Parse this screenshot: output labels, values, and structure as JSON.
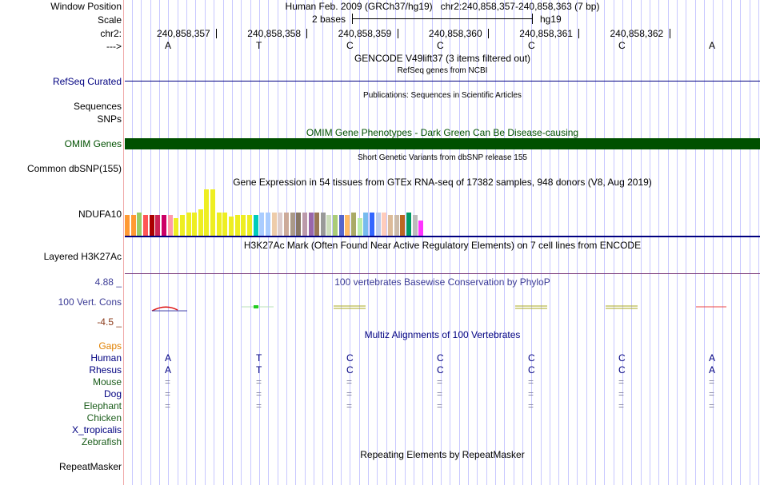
{
  "header": {
    "window_position_label": "Window Position",
    "window_position_value": "Human Feb. 2009 (GRCh37/hg19)   chr2:240,858,357-240,858,363 (7 bp)",
    "scale_label": "Scale",
    "scale_text": "2 bases",
    "scale_assembly": "hg19",
    "chrom_label": "chr2:",
    "strand_label": "--->",
    "coordinates": [
      "240,858,357",
      "240,858,358",
      "240,858,359",
      "240,858,360",
      "240,858,361",
      "240,858,362"
    ],
    "bases": [
      "A",
      "T",
      "C",
      "C",
      "C",
      "C",
      "A"
    ]
  },
  "tracks": {
    "gencode_title": "GENCODE V49lift37 (3 items filtered out)",
    "refseq_subtitle": "RefSeq genes from NCBI",
    "refseq_label": "RefSeq Curated",
    "publications_title": "Publications: Sequences in Scientific Articles",
    "sequences_label": "Sequences",
    "snps_label": "SNPs",
    "omim_title": "OMIM Gene Phenotypes - Dark Green Can Be Disease-causing",
    "omim_label": "OMIM Genes",
    "dbsnp_title": "Short Genetic Variants from dbSNP release 155",
    "dbsnp_label": "Common dbSNP(155)",
    "gtex_title": "Gene Expression in 54 tissues from GTEx RNA-seq of 17382 samples, 948 donors (V8, Aug 2019)",
    "gtex_label": "NDUFA10",
    "h3k27_title": "H3K27Ac Mark (Often Found Near Active Regulatory Elements) on 7 cell lines from ENCODE",
    "h3k27_label": "Layered H3K27Ac",
    "phylop_title": "100 vertebrates Basewise Conservation by PhyloP",
    "phylop_label": "100 Vert. Cons",
    "phylop_max": "4.88 _",
    "phylop_min": "-4.5 _",
    "multiz_title": "Multiz Alignments of 100 Vertebrates",
    "gaps_label": "Gaps",
    "species": [
      {
        "name": "Human",
        "color": "#000080",
        "row": [
          "A",
          "T",
          "C",
          "C",
          "C",
          "C",
          "A"
        ]
      },
      {
        "name": "Rhesus",
        "color": "#000080",
        "row": [
          "A",
          "T",
          "C",
          "C",
          "C",
          "C",
          "A"
        ]
      },
      {
        "name": "Mouse",
        "color": "#1a5c1a",
        "row": [
          "=",
          "=",
          "=",
          "=",
          "=",
          "=",
          "="
        ]
      },
      {
        "name": "Dog",
        "color": "#000080",
        "row": [
          "=",
          "=",
          "=",
          "=",
          "=",
          "=",
          "="
        ]
      },
      {
        "name": "Elephant",
        "color": "#1a5c1a",
        "row": [
          "=",
          "=",
          "=",
          "=",
          "=",
          "=",
          "="
        ]
      },
      {
        "name": "Chicken",
        "color": "#1a5c1a",
        "row": []
      },
      {
        "name": "X_tropicalis",
        "color": "#000080",
        "row": []
      },
      {
        "name": "Zebrafish",
        "color": "#1a5c1a",
        "row": []
      }
    ],
    "repeatmasker_title": "Repeating Elements by RepeatMasker",
    "repeatmasker_label": "RepeatMasker"
  },
  "colors": {
    "track_label_blue": "#000080",
    "omim_green": "#005000",
    "gaps_orange": "#e08000",
    "phylop_blue": "#3c3c96",
    "phylop_min_brown": "#8b3a1a",
    "gridline": "#c8c8ff"
  },
  "gtex_bar_colors": [
    "#ff9933",
    "#ff9933",
    "#99cc66",
    "#ff5555",
    "#aa0000",
    "#cc2255",
    "#cc0066",
    "#ff99aa",
    "#eeee22",
    "#eeee22",
    "#eeee22",
    "#eeee22",
    "#eeee22",
    "#eeee22",
    "#eeee22",
    "#eeee22",
    "#eeee22",
    "#eeee22",
    "#eeee22",
    "#eeee22",
    "#eeee22",
    "#00ccbb",
    "#aaccff",
    "#aaccff",
    "#eeccaa",
    "#ddcccc",
    "#ccaa99",
    "#aa9988",
    "#887766",
    "#bb99aa",
    "#9966aa",
    "#997755",
    "#999999",
    "#ccddbb",
    "#aacc77",
    "#5566cc",
    "#ffbb66",
    "#aaaa66",
    "#bbeeaa",
    "#77bbee",
    "#3366ff",
    "#bbccee",
    "#ffccbb",
    "#ddbb99",
    "#ccbbaa",
    "#bb6622",
    "#009966",
    "#bbbbbb",
    "#ff33ff"
  ],
  "gtex_bar_heights": [
    0.44,
    0.44,
    0.5,
    0.44,
    0.44,
    0.44,
    0.44,
    0.44,
    0.38,
    0.44,
    0.5,
    0.5,
    0.57,
    1.0,
    1.0,
    0.5,
    0.5,
    0.42,
    0.44,
    0.44,
    0.44,
    0.44,
    0.5,
    0.5,
    0.5,
    0.5,
    0.5,
    0.5,
    0.5,
    0.5,
    0.5,
    0.5,
    0.5,
    0.44,
    0.44,
    0.44,
    0.44,
    0.5,
    0.38,
    0.5,
    0.5,
    0.5,
    0.5,
    0.44,
    0.44,
    0.44,
    0.5,
    0.44,
    0.32
  ]
}
